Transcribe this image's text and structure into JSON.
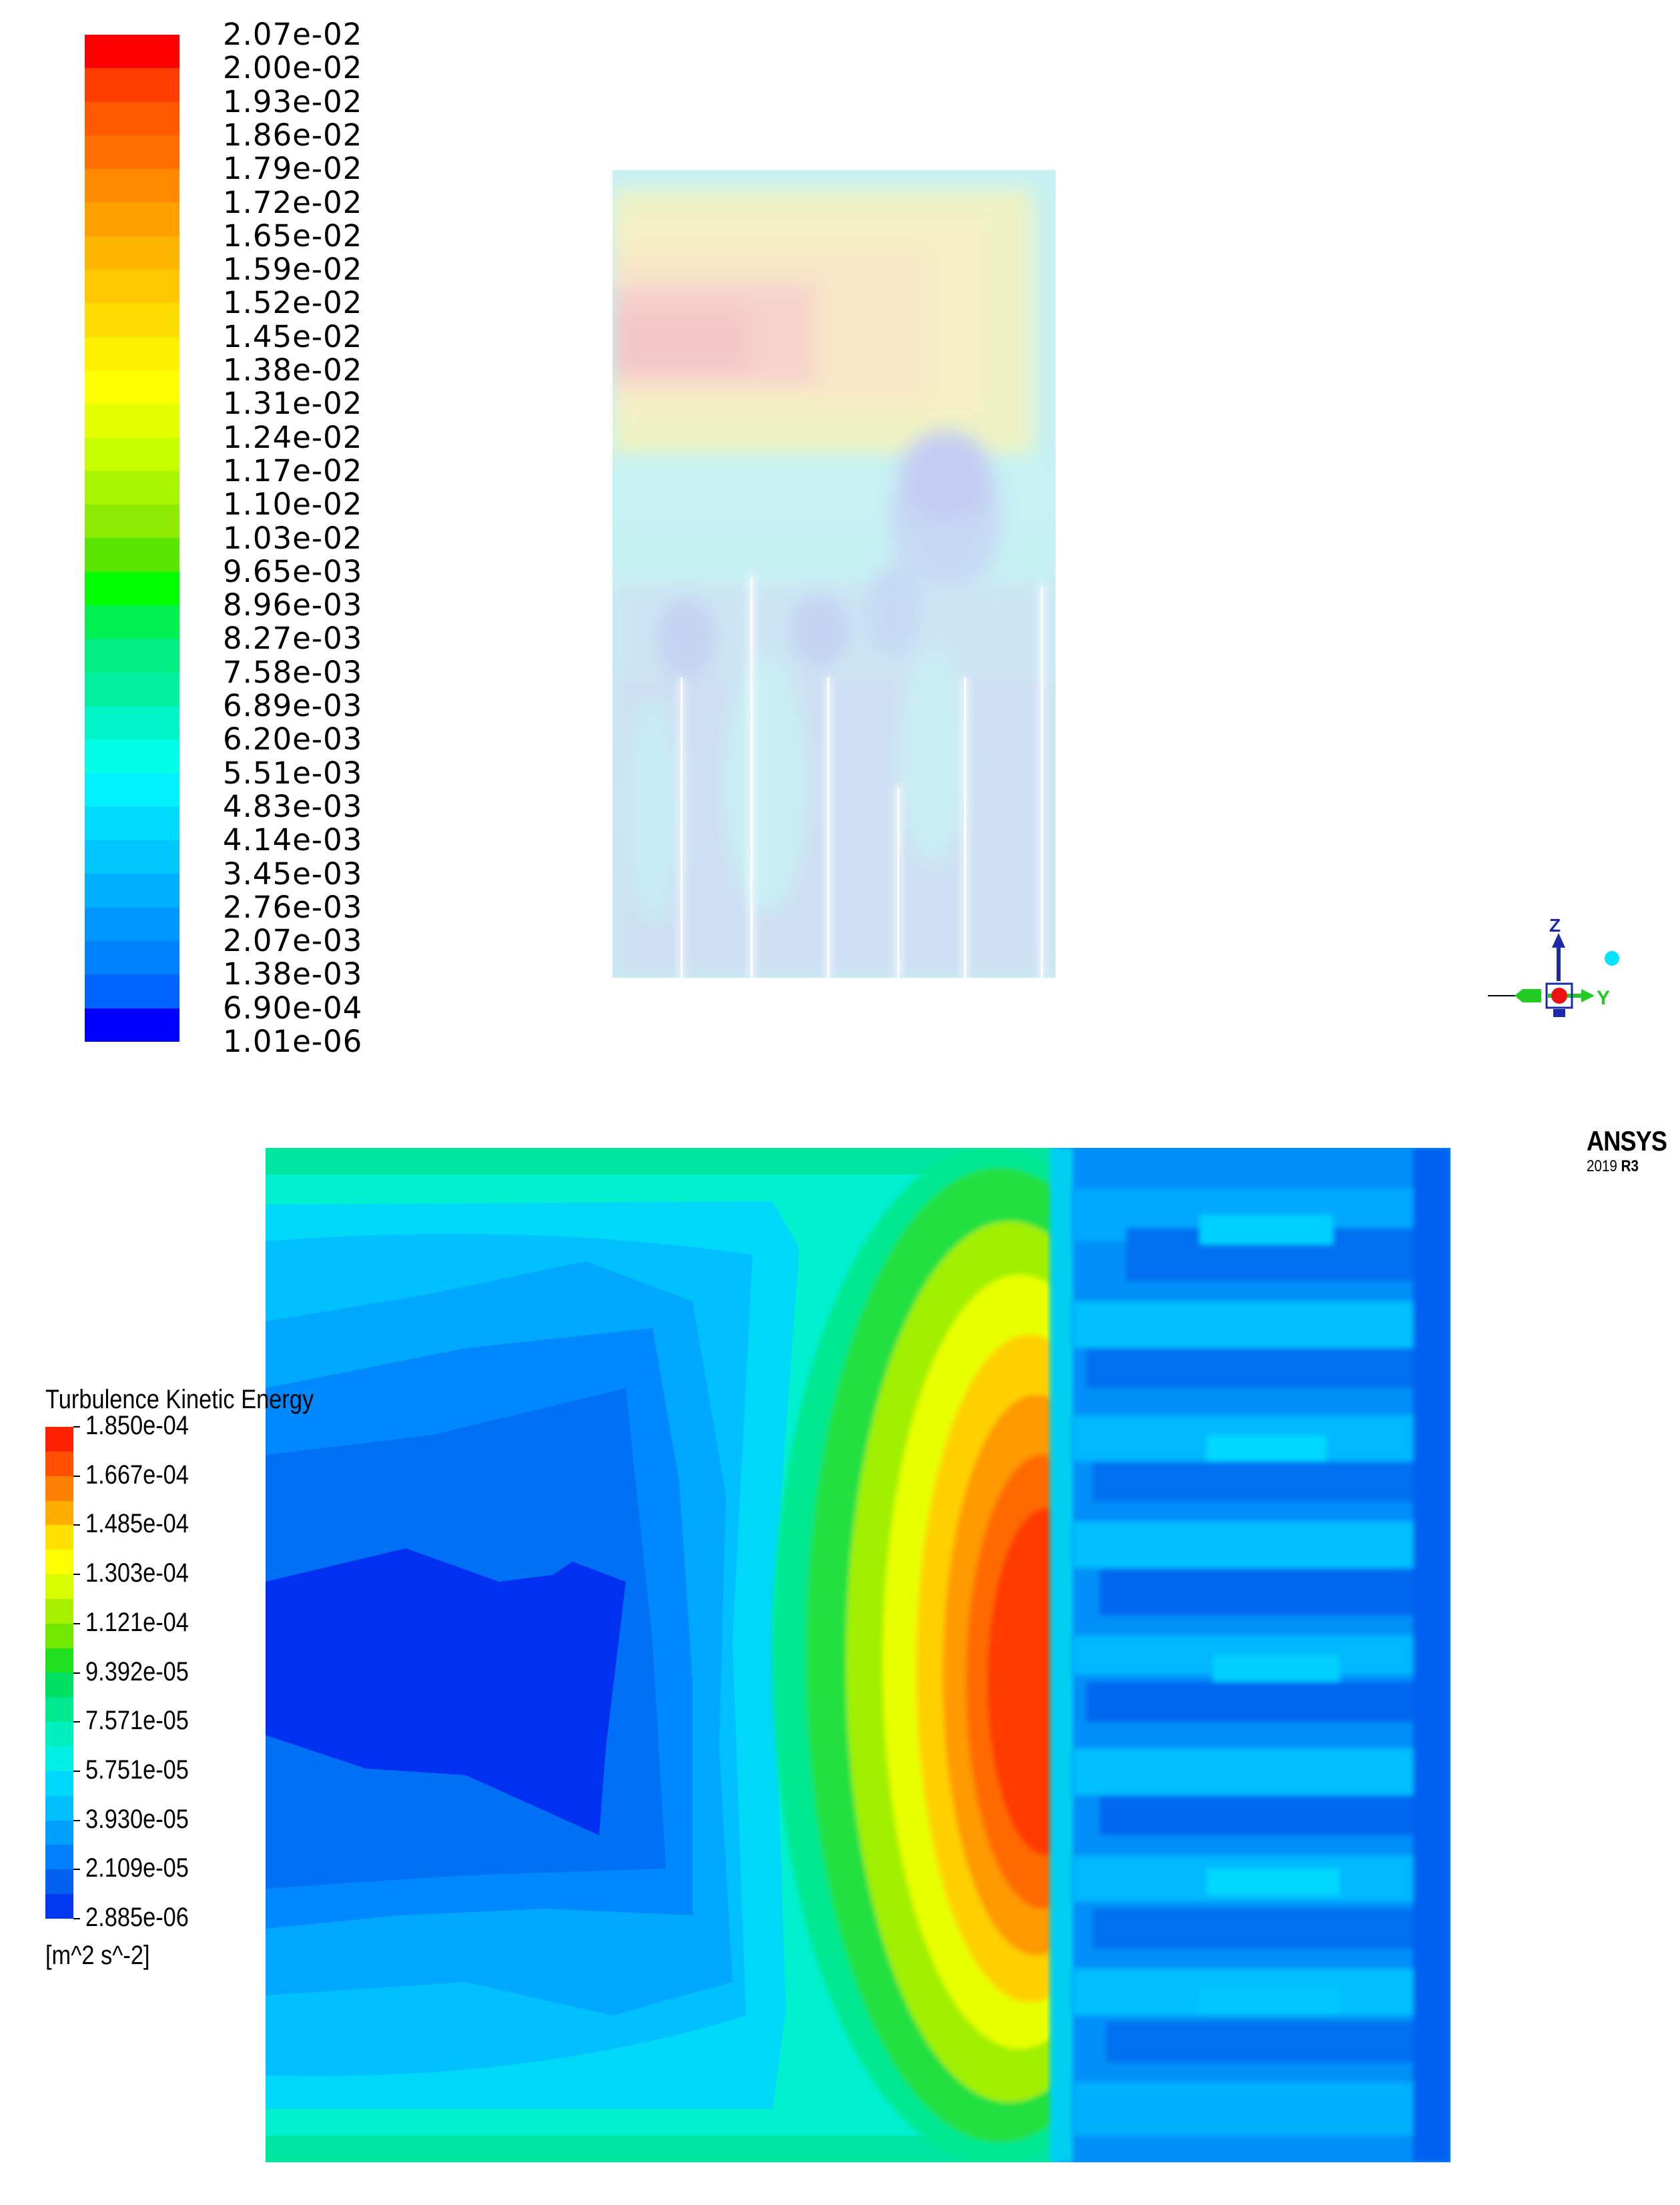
{
  "top_legend": {
    "labels": [
      "2.07e-02",
      "2.00e-02",
      "1.93e-02",
      "1.86e-02",
      "1.79e-02",
      "1.72e-02",
      "1.65e-02",
      "1.59e-02",
      "1.52e-02",
      "1.45e-02",
      "1.38e-02",
      "1.31e-02",
      "1.24e-02",
      "1.17e-02",
      "1.10e-02",
      "1.03e-02",
      "9.65e-03",
      "8.96e-03",
      "8.27e-03",
      "7.58e-03",
      "6.89e-03",
      "6.20e-03",
      "5.51e-03",
      "4.83e-03",
      "4.14e-03",
      "3.45e-03",
      "2.76e-03",
      "2.07e-03",
      "1.38e-03",
      "6.90e-04",
      "1.01e-06"
    ],
    "colors": [
      "#ff0000",
      "#ff3c00",
      "#ff5a00",
      "#ff7000",
      "#ff8a00",
      "#ffa000",
      "#ffb400",
      "#ffc800",
      "#ffdc00",
      "#fff000",
      "#ffff00",
      "#e6ff00",
      "#c8ff00",
      "#aaf500",
      "#8ceb00",
      "#5ae600",
      "#00ff00",
      "#00f050",
      "#00ee82",
      "#00f0a0",
      "#00f5c8",
      "#00ffe6",
      "#00f0ff",
      "#00dcff",
      "#00c8ff",
      "#00b0ff",
      "#0096ff",
      "#0082ff",
      "#0064ff",
      "#0000ff"
    ]
  },
  "triad": {
    "z_label": "Z",
    "y_label": "Y"
  },
  "branding": {
    "name": "ANSYS",
    "version_year": "2019",
    "version_release": "R3"
  },
  "bottom_legend": {
    "title": "Turbulence Kinetic Energy",
    "labels": [
      "1.850e-04",
      "1.667e-04",
      "1.485e-04",
      "1.303e-04",
      "1.121e-04",
      "9.392e-05",
      "7.571e-05",
      "5.751e-05",
      "3.930e-05",
      "2.109e-05",
      "2.885e-06"
    ],
    "unit": "[m^2 s^-2]",
    "colors": [
      "#ff2000",
      "#ff5000",
      "#ff8000",
      "#ffae00",
      "#ffe000",
      "#ffff00",
      "#d8ff00",
      "#a8f000",
      "#70e800",
      "#20e020",
      "#00e060",
      "#00e890",
      "#00f0c0",
      "#00f0e8",
      "#00d8ff",
      "#00c0ff",
      "#00a0ff",
      "#0080ff",
      "#0060f0",
      "#0038f0"
    ]
  }
}
